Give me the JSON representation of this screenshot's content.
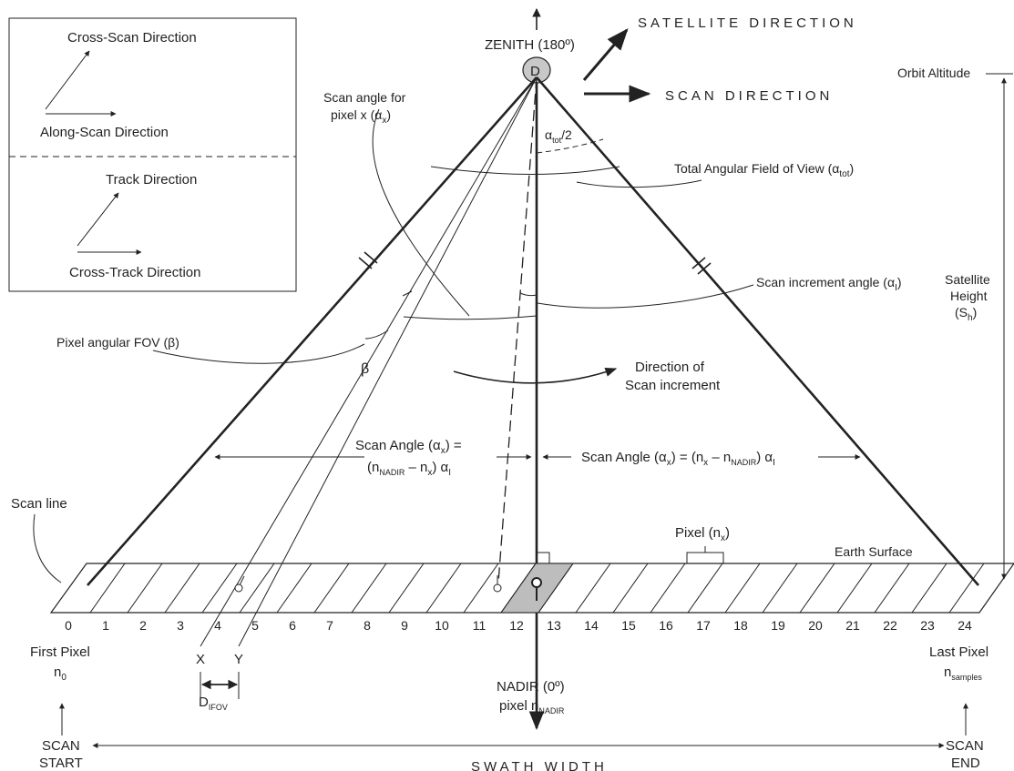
{
  "inset": {
    "cross_scan": "Cross-Scan Direction",
    "along_scan": "Along-Scan Direction",
    "track": "Track Direction",
    "cross_track": "Cross-Track Direction"
  },
  "top": {
    "zenith": "ZENITH (180º)",
    "satellite_dir": "SATELLITE DIRECTION",
    "scan_dir": "SCAN DIRECTION",
    "sensor": "D"
  },
  "right": {
    "orbit_alt": "Orbit Altitude",
    "sat_height_1": "Satellite",
    "sat_height_2": "Height",
    "sat_height_3": "(S",
    "sat_height_sub": "h",
    "sat_height_4": ")"
  },
  "annotations": {
    "scan_angle_px_1": "Scan angle for",
    "scan_angle_px_2": "pixel x (α",
    "scan_angle_px_sub": "x",
    "scan_angle_px_3": ")",
    "alpha_half": "α",
    "alpha_half_sub": "tot",
    "alpha_half_tail": "/2",
    "total_fov": "Total Angular Field of View (α",
    "total_fov_sub": "tot",
    "total_fov_tail": ")",
    "scan_incr": "Scan increment angle (α",
    "scan_incr_sub": "I",
    "scan_incr_tail": ")",
    "pixel_fov": "Pixel angular FOV (β)",
    "beta": "β",
    "dir_incr_1": "Direction of",
    "dir_incr_2": "Scan increment",
    "scan_line": "Scan line",
    "pixel_nx": "Pixel (n",
    "pixel_nx_sub": "x",
    "pixel_nx_tail": ")",
    "earth_surface": "Earth Surface"
  },
  "equations": {
    "left_1": "Scan Angle (α",
    "left_1_sub": "x",
    "left_1_tail": ") =",
    "left_2a": "(n",
    "left_2a_sub": "NADIR",
    "left_2b": " – n",
    "left_2b_sub": "x",
    "left_2c": ") α",
    "left_2c_sub": "I",
    "right_a": "Scan Angle (α",
    "right_a_sub": "x",
    "right_b": ") = (n",
    "right_b_sub": "x",
    "right_c": " – n",
    "right_c_sub": "NADIR",
    "right_d": ") α",
    "right_d_sub": "I"
  },
  "pixel_numbers": [
    "0",
    "1",
    "2",
    "3",
    "4",
    "5",
    "6",
    "7",
    "8",
    "9",
    "10",
    "11",
    "12",
    "13",
    "14",
    "15",
    "16",
    "17",
    "18",
    "19",
    "20",
    "21",
    "22",
    "23",
    "24"
  ],
  "bottom": {
    "first_pixel": "First Pixel",
    "n0": "n",
    "n0_sub": "0",
    "last_pixel": "Last Pixel",
    "nsamples": "n",
    "nsamples_sub": "samples",
    "x_mark": "X",
    "y_mark": "Y",
    "difov": "D",
    "difov_sub": "IFOV",
    "nadir": "NADIR (0º)",
    "nadir_pixel": "pixel n",
    "nadir_pixel_sub": "NADIR",
    "scan_start_1": "SCAN",
    "scan_start_2": "START",
    "scan_end_1": "SCAN",
    "scan_end_2": "END",
    "swath": "SWATH WIDTH"
  },
  "colors": {
    "line": "#222222",
    "nadir_pixel_fill": "#bdbdbd",
    "sensor_fill": "#c8c8c8"
  }
}
